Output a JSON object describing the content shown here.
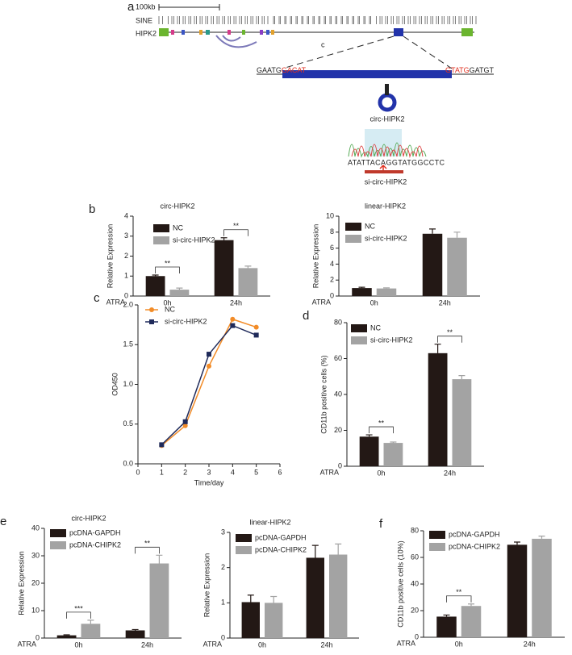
{
  "panel_a": {
    "label": "a",
    "scale": "100kb",
    "track1": "SINE",
    "track2": "HIPK2",
    "mark": "c",
    "left_flank": "GAATG",
    "left_junction": "GACAT",
    "right_junction": "GTATG",
    "right_flank": "GATGT",
    "circle_label": "circ-HIPK2",
    "sequence": "ATATTACAGGTATGGCCTC",
    "sirna_label": "si-circ-HIPK2"
  },
  "chart_data": [
    {
      "type": "bar",
      "panel_label": "b",
      "title": "circ-HIPK2",
      "ylabel": "Relative Expression",
      "annotation": "ATRA",
      "categories": [
        "0h",
        "24h"
      ],
      "series": [
        {
          "name": "NC",
          "color": "#231815",
          "values": [
            1.0,
            2.8
          ],
          "errors": [
            0.05,
            0.12
          ]
        },
        {
          "name": "si-circ-HIPK2",
          "color": "#a3a3a3",
          "values": [
            0.32,
            1.4
          ],
          "errors": [
            0.08,
            0.1
          ]
        }
      ],
      "ylim": [
        0,
        4
      ],
      "yticks": [
        0,
        1,
        2,
        3,
        4
      ],
      "significance": [
        {
          "category": "0h",
          "text": "**"
        },
        {
          "category": "24h",
          "text": "**"
        }
      ]
    },
    {
      "type": "bar",
      "title": "linear-HIPK2",
      "ylabel": "Relative Expression",
      "annotation": "ATRA",
      "categories": [
        "0h",
        "24h"
      ],
      "series": [
        {
          "name": "NC",
          "color": "#231815",
          "values": [
            1.0,
            7.8
          ],
          "errors": [
            0.1,
            0.6
          ]
        },
        {
          "name": "si-circ-HIPK2",
          "color": "#a3a3a3",
          "values": [
            0.95,
            7.3
          ],
          "errors": [
            0.08,
            0.7
          ]
        }
      ],
      "ylim": [
        0,
        10
      ],
      "yticks": [
        0,
        2,
        4,
        6,
        8,
        10
      ],
      "significance": []
    },
    {
      "type": "line",
      "panel_label": "c",
      "xlabel": "Time/day",
      "ylabel": "OD450",
      "x": [
        1,
        2,
        3,
        4,
        5
      ],
      "series": [
        {
          "name": "NC",
          "color": "#f28c28",
          "marker": "circle",
          "values": [
            0.23,
            0.48,
            1.23,
            1.82,
            1.72
          ]
        },
        {
          "name": "si-circ-HIPK2",
          "color": "#1f2a5a",
          "marker": "square",
          "values": [
            0.24,
            0.53,
            1.38,
            1.74,
            1.62
          ]
        }
      ],
      "xlim": [
        0,
        6
      ],
      "xticks": [
        0,
        1,
        2,
        3,
        4,
        5,
        6
      ],
      "ylim": [
        0,
        2
      ],
      "yticks": [
        {
          "value": 0,
          "label": "0.0"
        },
        0.5,
        {
          "value": 1,
          "label": "1.0"
        },
        1.5,
        {
          "value": 2,
          "label": "2.0"
        }
      ]
    },
    {
      "type": "bar",
      "panel_label": "d",
      "ylabel": "CD11b positive cells (%)",
      "annotation": "ATRA",
      "categories": [
        "0h",
        "24h"
      ],
      "series": [
        {
          "name": "NC",
          "color": "#231815",
          "values": [
            16.5,
            63
          ],
          "errors": [
            1,
            5
          ]
        },
        {
          "name": "si-circ-HIPK2",
          "color": "#a3a3a3",
          "values": [
            13,
            48.5
          ],
          "errors": [
            0.5,
            2
          ]
        }
      ],
      "ylim": [
        0,
        80
      ],
      "yticks": [
        0,
        20,
        40,
        60,
        80
      ],
      "significance": [
        {
          "category": "0h",
          "text": "**"
        },
        {
          "category": "24h",
          "text": "**"
        }
      ]
    },
    {
      "type": "bar",
      "panel_label": "e",
      "title": "circ-HIPK2",
      "ylabel": "Relative Expression",
      "annotation": "ATRA",
      "categories": [
        "0h",
        "24h"
      ],
      "series": [
        {
          "name": "pcDNA-GAPDH",
          "color": "#231815",
          "values": [
            1.0,
            2.8
          ],
          "errors": [
            0.2,
            0.3
          ]
        },
        {
          "name": "pcDNA-CHIPK2",
          "color": "#a3a3a3",
          "values": [
            5.2,
            27.2
          ],
          "errors": [
            1.3,
            3
          ]
        }
      ],
      "ylim": [
        0,
        40
      ],
      "yticks": [
        0,
        10,
        20,
        30,
        40
      ],
      "significance": [
        {
          "category": "0h",
          "text": "***"
        },
        {
          "category": "24h",
          "text": "**"
        }
      ]
    },
    {
      "type": "bar",
      "title": "linear-HIPK2",
      "ylabel": "Relative Expression",
      "annotation": "ATRA",
      "categories": [
        "0h",
        "24h"
      ],
      "series": [
        {
          "name": "pcDNA-GAPDH",
          "color": "#231815",
          "values": [
            1.02,
            2.28
          ],
          "errors": [
            0.2,
            0.35
          ]
        },
        {
          "name": "pcDNA-CHIPK2",
          "color": "#a3a3a3",
          "values": [
            1.0,
            2.37
          ],
          "errors": [
            0.18,
            0.3
          ]
        }
      ],
      "ylim": [
        0,
        3
      ],
      "yticks": [
        0,
        1,
        2,
        3
      ],
      "significance": []
    },
    {
      "type": "bar",
      "panel_label": "f",
      "ylabel": "CD11b positive cells (10%)",
      "annotation": "ATRA",
      "categories": [
        "0h",
        "24h"
      ],
      "series": [
        {
          "name": "pcDNA-GAPDH",
          "color": "#231815",
          "values": [
            15.5,
            69.5
          ],
          "errors": [
            1.2,
            2
          ]
        },
        {
          "name": "pcDNA-CHIPK2",
          "color": "#a3a3a3",
          "values": [
            23.5,
            74
          ],
          "errors": [
            1.5,
            2
          ]
        }
      ],
      "ylim": [
        0,
        80
      ],
      "yticks": [
        0,
        20,
        40,
        60,
        80
      ],
      "significance": [
        {
          "category": "0h",
          "text": "**"
        }
      ]
    }
  ]
}
